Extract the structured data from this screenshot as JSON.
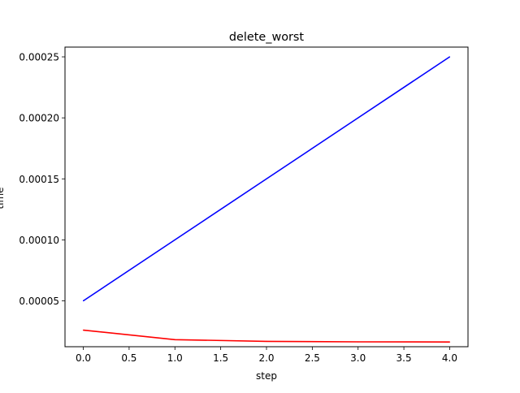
{
  "chart_data": {
    "type": "line",
    "title": "delete_worst",
    "xlabel": "step",
    "ylabel": "time",
    "xlim": [
      -0.2,
      4.2
    ],
    "ylim": [
      1.24e-05,
      0.000258
    ],
    "xticks": [
      0.0,
      0.5,
      1.0,
      1.5,
      2.0,
      2.5,
      3.0,
      3.5,
      4.0
    ],
    "xtick_labels": [
      "0.0",
      "0.5",
      "1.0",
      "1.5",
      "2.0",
      "2.5",
      "3.0",
      "3.5",
      "4.0"
    ],
    "yticks": [
      5e-05,
      0.0001,
      0.00015,
      0.0002,
      0.00025
    ],
    "ytick_labels": [
      "0.00005",
      "0.00010",
      "0.00015",
      "0.00020",
      "0.00025"
    ],
    "grid": false,
    "series": [
      {
        "color": "#0000ff",
        "x": [
          0,
          1,
          2,
          3,
          4
        ],
        "values": [
          5e-05,
          0.0001,
          0.00015,
          0.0002,
          0.00025
        ]
      },
      {
        "color": "#ff0000",
        "x": [
          0,
          1,
          2,
          3,
          4
        ],
        "values": [
          2.6e-05,
          1.82e-05,
          1.68e-05,
          1.64e-05,
          1.63e-05
        ]
      }
    ]
  }
}
